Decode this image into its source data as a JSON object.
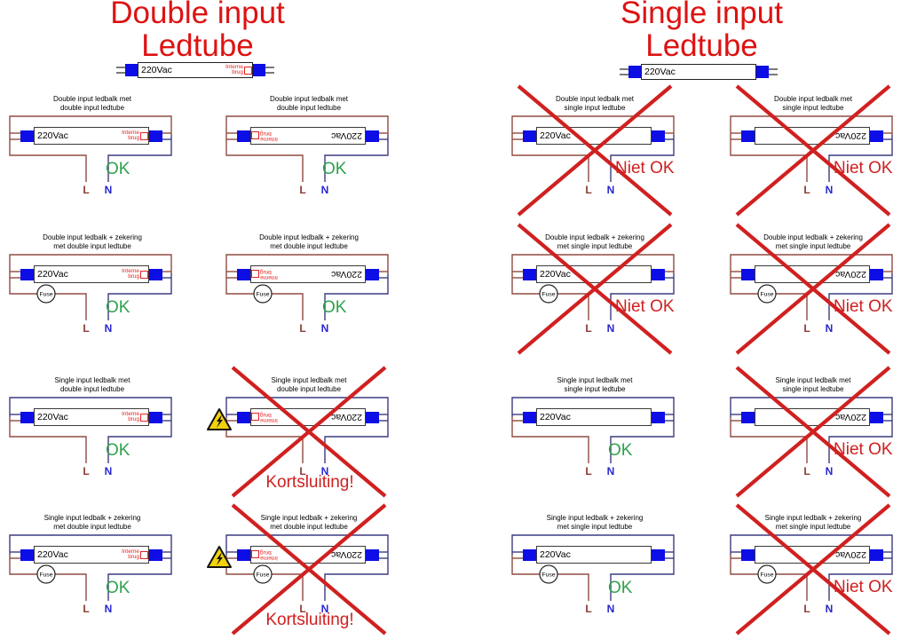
{
  "labels": {
    "voltage": "220Vac",
    "interne_line1": "Interne",
    "interne_line2": "brug",
    "fuse": "Fuse",
    "live": "L",
    "neutral": "N",
    "ok": "OK",
    "niet_ok": "Niet OK",
    "kortsluiting": "Kortsluiting!"
  },
  "colors": {
    "header_red": "#de1212",
    "cross_red": "#d02020",
    "ok_green": "#2fa14c",
    "wire_live": "#8f4b42",
    "wire_neutral": "#3c3c80",
    "cap_blue": "#0d0de6",
    "live_label": "#8a3c32",
    "neutral_label": "#2727cf",
    "interne_red": "#e42222"
  },
  "headers": {
    "left": {
      "line1": "Double input",
      "line2": "Ledtube",
      "tube": "double"
    },
    "right": {
      "line1": "Single input",
      "line2": "Ledtube",
      "tube": "single"
    }
  },
  "cells": [
    {
      "col": 0,
      "row": 0,
      "title1": "Double input ledbalk met",
      "title2": "double input ledtube",
      "balk": "double",
      "fuse": false,
      "tube": "double",
      "flipped": false,
      "verdict": "ok",
      "warning": false
    },
    {
      "col": 1,
      "row": 0,
      "title1": "Double input ledbalk met",
      "title2": "double input ledtube",
      "balk": "double",
      "fuse": false,
      "tube": "double",
      "flipped": true,
      "verdict": "ok",
      "warning": false
    },
    {
      "col": 2,
      "row": 0,
      "title1": "Double input ledbalk met",
      "title2": "single input ledtube",
      "balk": "double",
      "fuse": false,
      "tube": "single",
      "flipped": false,
      "verdict": "niet_ok",
      "warning": false
    },
    {
      "col": 3,
      "row": 0,
      "title1": "Double input ledbalk met",
      "title2": "single input ledtube",
      "balk": "double",
      "fuse": false,
      "tube": "single",
      "flipped": true,
      "verdict": "niet_ok",
      "warning": false
    },
    {
      "col": 0,
      "row": 1,
      "title1": "Double input ledbalk + zekering",
      "title2": "met double input ledtube",
      "balk": "double",
      "fuse": true,
      "tube": "double",
      "flipped": false,
      "verdict": "ok",
      "warning": false
    },
    {
      "col": 1,
      "row": 1,
      "title1": "Double input ledbalk + zekering",
      "title2": "met double input ledtube",
      "balk": "double",
      "fuse": true,
      "tube": "double",
      "flipped": true,
      "verdict": "ok",
      "warning": false
    },
    {
      "col": 2,
      "row": 1,
      "title1": "Double input ledbalk + zekering",
      "title2": "met single input ledtube",
      "balk": "double",
      "fuse": true,
      "tube": "single",
      "flipped": false,
      "verdict": "niet_ok",
      "warning": false
    },
    {
      "col": 3,
      "row": 1,
      "title1": "Double input ledbalk + zekering",
      "title2": "met single input ledtube",
      "balk": "double",
      "fuse": true,
      "tube": "single",
      "flipped": true,
      "verdict": "niet_ok",
      "warning": false
    },
    {
      "col": 0,
      "row": 2,
      "title1": "Single input ledbalk met",
      "title2": "double input ledtube",
      "balk": "single",
      "fuse": false,
      "tube": "double",
      "flipped": false,
      "verdict": "ok",
      "warning": false
    },
    {
      "col": 1,
      "row": 2,
      "title1": "Single input ledbalk met",
      "title2": "double input ledtube",
      "balk": "single",
      "fuse": false,
      "tube": "double",
      "flipped": true,
      "verdict": "kortsluiting",
      "warning": true
    },
    {
      "col": 2,
      "row": 2,
      "title1": "Single input ledbalk met",
      "title2": "single input ledtube",
      "balk": "single",
      "fuse": false,
      "tube": "single",
      "flipped": false,
      "verdict": "ok",
      "warning": false
    },
    {
      "col": 3,
      "row": 2,
      "title1": "Single input ledbalk met",
      "title2": "single input ledtube",
      "balk": "single",
      "fuse": false,
      "tube": "single",
      "flipped": true,
      "verdict": "niet_ok",
      "warning": false
    },
    {
      "col": 0,
      "row": 3,
      "title1": "Single input ledbalk + zekering",
      "title2": "met double input ledtube",
      "balk": "single",
      "fuse": true,
      "tube": "double",
      "flipped": false,
      "verdict": "ok",
      "warning": false
    },
    {
      "col": 1,
      "row": 3,
      "title1": "Single input ledbalk + zekering",
      "title2": "met double input ledtube",
      "balk": "single",
      "fuse": true,
      "tube": "double",
      "flipped": true,
      "verdict": "kortsluiting",
      "warning": true
    },
    {
      "col": 2,
      "row": 3,
      "title1": "Single input ledbalk + zekering",
      "title2": "met single input ledtube",
      "balk": "single",
      "fuse": true,
      "tube": "single",
      "flipped": false,
      "verdict": "ok",
      "warning": false
    },
    {
      "col": 3,
      "row": 3,
      "title1": "Single input ledbalk + zekering",
      "title2": "met single input ledtube",
      "balk": "single",
      "fuse": true,
      "tube": "single",
      "flipped": true,
      "verdict": "niet_ok",
      "warning": false
    }
  ]
}
